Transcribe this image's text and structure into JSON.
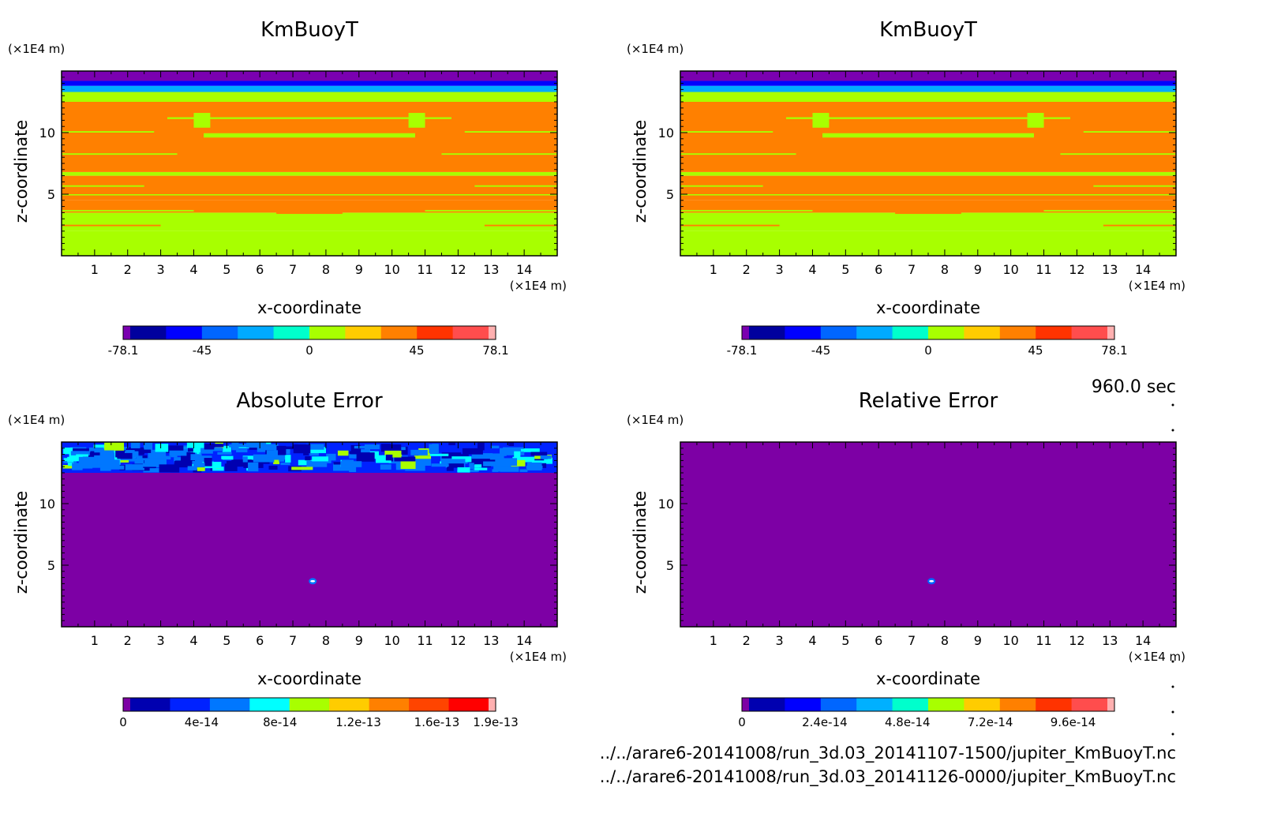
{
  "time_label": "960.0 sec",
  "file_paths": [
    "../../arare6-20141008/run_3d.03_20141107-1500/jupiter_KmBuoyT.nc",
    "../../arare6-20141008/run_3d.03_20141126-0000/jupiter_KmBuoyT.nc"
  ],
  "colors": {
    "kmbuoy_levels": [
      "#7a00b0",
      "#00009e",
      "#0000ff",
      "#0066ff",
      "#00aaff",
      "#00ffcc",
      "#a8ff00",
      "#ffcc00",
      "#ff8000",
      "#ff3300",
      "#ff4d4d",
      "#ffb0b0"
    ],
    "abs_error_levels": [
      "#7d00a5",
      "#0000b0",
      "#0022ff",
      "#0077ff",
      "#00ffff",
      "#a8ff00",
      "#ffcc00",
      "#ff8000",
      "#ff4400",
      "#ff0000",
      "#ffb0b0"
    ],
    "rel_error_levels": [
      "#7d00a5",
      "#0000b0",
      "#0000ff",
      "#0066ff",
      "#00b0ff",
      "#00ffcc",
      "#a8ff00",
      "#ffcc00",
      "#ff8000",
      "#ff3300",
      "#ff4d4d",
      "#ffb0b0"
    ]
  },
  "chart_data": [
    {
      "type": "heatmap",
      "title": "KmBuoyT",
      "xlabel": "x-coordinate",
      "ylabel": "z-coordinate",
      "x_unit": "(×1E4 m)",
      "y_unit": "(×1E4 m)",
      "xlim": [
        0,
        15
      ],
      "ylim": [
        0,
        15
      ],
      "x_ticks": [
        "1",
        "2",
        "3",
        "4",
        "5",
        "6",
        "7",
        "8",
        "9",
        "10",
        "11",
        "12",
        "13",
        "14"
      ],
      "y_ticks": [
        "5",
        "10"
      ],
      "colorbar_labels": [
        "-78.1",
        "-45",
        "0",
        "45",
        "78.1"
      ],
      "colorbar_range": [
        -78.1,
        78.1
      ],
      "layers": [
        {
          "z_from": 0,
          "z_to": 2,
          "value": 10
        },
        {
          "z_from": 2,
          "z_to": 3.5,
          "value": 10
        },
        {
          "z_from": 3.5,
          "z_to": 4.5,
          "value": 30
        },
        {
          "z_from": 4.5,
          "z_to": 6.5,
          "value": 30
        },
        {
          "z_from": 6.5,
          "z_to": 6.8,
          "value": 10
        },
        {
          "z_from": 6.8,
          "z_to": 12.5,
          "value": 30
        },
        {
          "z_from": 12.5,
          "z_to": 13.3,
          "value": 10
        },
        {
          "z_from": 13.3,
          "z_to": 13.8,
          "value": -20
        },
        {
          "z_from": 13.8,
          "z_to": 14.2,
          "value": -40
        },
        {
          "z_from": 14.2,
          "z_to": 15,
          "value": -70
        }
      ]
    },
    {
      "type": "heatmap",
      "title": "KmBuoyT",
      "xlabel": "x-coordinate",
      "ylabel": "z-coordinate",
      "x_unit": "(×1E4 m)",
      "y_unit": "(×1E4 m)",
      "xlim": [
        0,
        15
      ],
      "ylim": [
        0,
        15
      ],
      "x_ticks": [
        "1",
        "2",
        "3",
        "4",
        "5",
        "6",
        "7",
        "8",
        "9",
        "10",
        "11",
        "12",
        "13",
        "14"
      ],
      "y_ticks": [
        "5",
        "10"
      ],
      "colorbar_labels": [
        "-78.1",
        "-45",
        "0",
        "45",
        "78.1"
      ],
      "colorbar_range": [
        -78.1,
        78.1
      ],
      "layers": [
        {
          "z_from": 0,
          "z_to": 2,
          "value": 10
        },
        {
          "z_from": 2,
          "z_to": 3.5,
          "value": 10
        },
        {
          "z_from": 3.5,
          "z_to": 4.5,
          "value": 30
        },
        {
          "z_from": 4.5,
          "z_to": 6.5,
          "value": 30
        },
        {
          "z_from": 6.5,
          "z_to": 6.8,
          "value": 10
        },
        {
          "z_from": 6.8,
          "z_to": 12.5,
          "value": 30
        },
        {
          "z_from": 12.5,
          "z_to": 13.3,
          "value": 10
        },
        {
          "z_from": 13.3,
          "z_to": 13.8,
          "value": -20
        },
        {
          "z_from": 13.8,
          "z_to": 14.2,
          "value": -40
        },
        {
          "z_from": 14.2,
          "z_to": 15,
          "value": -70
        }
      ]
    },
    {
      "type": "heatmap",
      "title": "Absolute Error",
      "xlabel": "x-coordinate",
      "ylabel": "z-coordinate",
      "x_unit": "(×1E4 m)",
      "y_unit": "(×1E4 m)",
      "xlim": [
        0,
        15
      ],
      "ylim": [
        0,
        15
      ],
      "x_ticks": [
        "1",
        "2",
        "3",
        "4",
        "5",
        "6",
        "7",
        "8",
        "9",
        "10",
        "11",
        "12",
        "13",
        "14"
      ],
      "y_ticks": [
        "5",
        "10"
      ],
      "colorbar_labels": [
        "0",
        "4e-14",
        "8e-14",
        "1.2e-13",
        "1.6e-13",
        "1.9e-13"
      ],
      "colorbar_range": [
        0,
        1.9e-13
      ],
      "background_value": 0,
      "noisy_band": {
        "z_from": 12.5,
        "z_to": 15,
        "typical_value": 6e-14
      }
    },
    {
      "type": "heatmap",
      "title": "Relative Error",
      "xlabel": "x-coordinate",
      "ylabel": "z-coordinate",
      "x_unit": "(×1E4 m)",
      "y_unit": "(×1E4 m)",
      "xlim": [
        0,
        15
      ],
      "ylim": [
        0,
        15
      ],
      "x_ticks": [
        "1",
        "2",
        "3",
        "4",
        "5",
        "6",
        "7",
        "8",
        "9",
        "10",
        "11",
        "12",
        "13",
        "14"
      ],
      "y_ticks": [
        "5",
        "10"
      ],
      "colorbar_labels": [
        "0",
        "2.4e-14",
        "4.8e-14",
        "7.2e-14",
        "9.6e-14"
      ],
      "colorbar_range": [
        0,
        1.08e-13
      ],
      "background_value": 0
    }
  ]
}
